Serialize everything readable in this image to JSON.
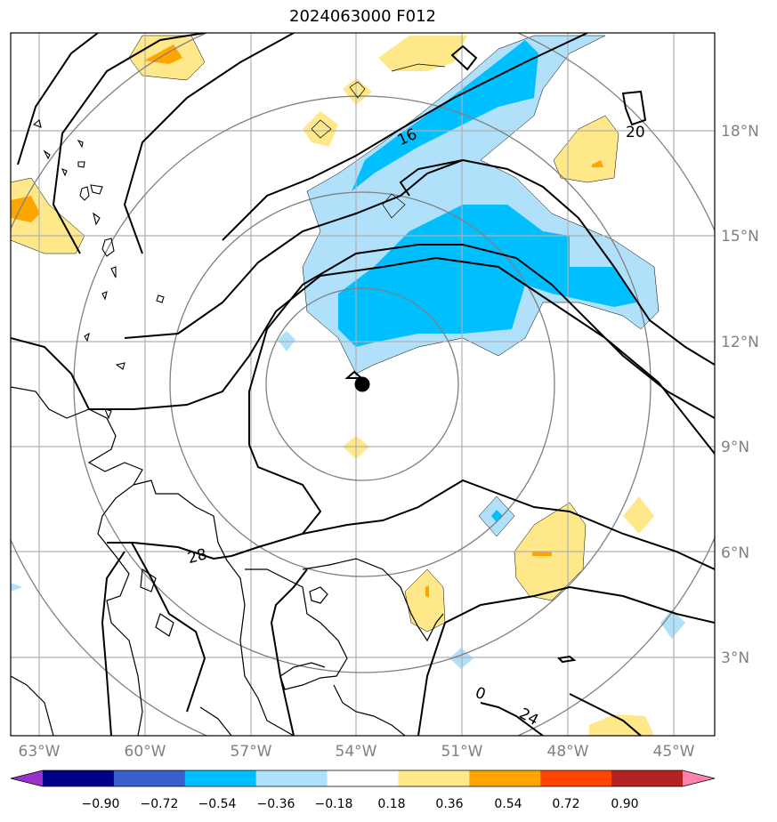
{
  "title": "2024063000 F012",
  "map": {
    "lon_ticks": [
      "63°W",
      "60°W",
      "57°W",
      "54°W",
      "51°W",
      "48°W",
      "45°W"
    ],
    "lat_ticks": [
      "3°N",
      "6°N",
      "9°N",
      "12°N",
      "15°N",
      "18°N"
    ],
    "contour_labels": [
      "16",
      "20",
      "24",
      "28",
      "0"
    ],
    "storm_center": {
      "lon": -53.8,
      "lat": 10.8
    },
    "colors": {
      "gridline": "#b0b0b0",
      "range_ring": "#808080",
      "contour": "#000000"
    }
  },
  "colorbar": {
    "labels": [
      "−0.90",
      "−0.72",
      "−0.54",
      "−0.36",
      "−0.18",
      "0.18",
      "0.36",
      "0.54",
      "0.72",
      "0.90"
    ],
    "colors": [
      "#9932cc",
      "#00008b",
      "#3a5fcd",
      "#00bfff",
      "#b0e0fa",
      "#ffffff",
      "#ffe88a",
      "#ffa500",
      "#ff4500",
      "#b22222",
      "#ff82ab"
    ]
  }
}
